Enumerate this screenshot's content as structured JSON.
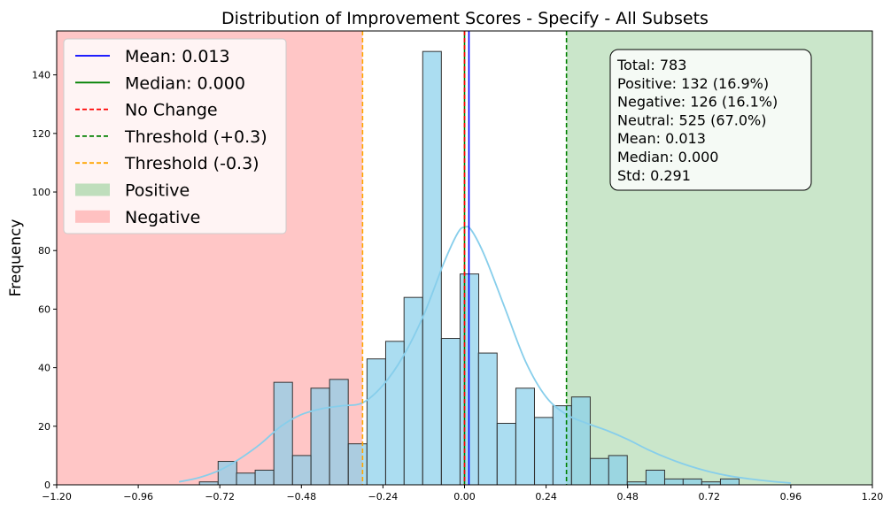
{
  "chart_data": {
    "type": "histogram",
    "title": "Distribution of Improvement Scores - Specify - All Subsets",
    "xlabel": "",
    "ylabel": "Frequency",
    "xlim": [
      -1.2,
      1.2
    ],
    "ylim": [
      0,
      155
    ],
    "xticks": [
      -1.2,
      -0.96,
      -0.72,
      -0.48,
      -0.24,
      0.0,
      0.24,
      0.48,
      0.72,
      0.96,
      1.2
    ],
    "xtick_labels": [
      "−1.20",
      "−0.96",
      "−0.72",
      "−0.48",
      "−0.24",
      "0.00",
      "0.24",
      "0.48",
      "0.72",
      "0.96",
      "1.20"
    ],
    "yticks": [
      0,
      20,
      40,
      60,
      80,
      100,
      120,
      140
    ],
    "ytick_labels": [
      "0",
      "20",
      "40",
      "60",
      "80",
      "100",
      "120",
      "140"
    ],
    "bin_width": 0.0548,
    "bins_start": [
      -0.835,
      -0.78,
      -0.725,
      -0.671,
      -0.616,
      -0.561,
      -0.506,
      -0.452,
      -0.397,
      -0.342,
      -0.287,
      -0.232,
      -0.178,
      -0.123,
      -0.068,
      -0.013,
      0.041,
      0.096,
      0.151,
      0.206,
      0.26,
      0.315,
      0.37,
      0.424,
      0.479,
      0.534,
      0.589,
      0.643,
      0.698,
      0.753,
      0.808,
      0.862,
      0.917
    ],
    "counts": [
      0,
      1,
      8,
      4,
      5,
      35,
      10,
      33,
      36,
      14,
      43,
      49,
      64,
      148,
      50,
      72,
      45,
      21,
      33,
      23,
      27,
      30,
      9,
      10,
      1,
      5,
      2,
      2,
      1,
      2,
      0,
      0,
      0
    ],
    "kde": {
      "x": [
        -0.84,
        -0.78,
        -0.72,
        -0.66,
        -0.6,
        -0.54,
        -0.48,
        -0.42,
        -0.36,
        -0.3,
        -0.24,
        -0.18,
        -0.12,
        -0.06,
        -0.02,
        0.0,
        0.02,
        0.06,
        0.12,
        0.18,
        0.24,
        0.3,
        0.36,
        0.42,
        0.48,
        0.54,
        0.6,
        0.66,
        0.72,
        0.78,
        0.84,
        0.9,
        0.96
      ],
      "y": [
        1,
        2.5,
        5,
        9,
        14,
        20,
        24,
        26,
        27,
        28,
        34,
        44,
        58,
        76,
        86,
        88,
        87,
        78,
        60,
        42,
        30,
        24,
        21,
        18.5,
        15.5,
        12,
        9,
        6.5,
        4.5,
        3,
        2,
        1.2,
        0.6
      ]
    },
    "lines": {
      "mean": 0.013,
      "median": 0.0,
      "no_change": 0.0,
      "threshold_pos": 0.3,
      "threshold_neg": -0.3
    },
    "regions": {
      "negative": [
        -1.2,
        -0.3
      ],
      "positive": [
        0.3,
        1.2
      ]
    },
    "legend": {
      "placement": "upper-left",
      "items": [
        {
          "label": "Mean: 0.013",
          "kind": "line",
          "color": "#0000ff",
          "dash": ""
        },
        {
          "label": "Median: 0.000",
          "kind": "line",
          "color": "#008000",
          "dash": ""
        },
        {
          "label": "No Change",
          "kind": "line",
          "color": "#ff0000",
          "dash": "5,3"
        },
        {
          "label": "Threshold (+0.3)",
          "kind": "line",
          "color": "#008000",
          "dash": "5,3"
        },
        {
          "label": "Threshold (-0.3)",
          "kind": "line",
          "color": "#ffa500",
          "dash": "5,3"
        },
        {
          "label": "Positive",
          "kind": "patch",
          "color": "#a9d7a9"
        },
        {
          "label": "Negative",
          "kind": "patch",
          "color": "#ffb0b0"
        }
      ]
    },
    "stats_box": {
      "placement": "upper-right",
      "lines": [
        "Total: 783",
        "Positive: 132 (16.9%)",
        "Negative: 126 (16.1%)",
        "Neutral: 525 (67.0%)",
        "Mean: 0.013",
        "Median: 0.000",
        "Std: 0.291"
      ]
    },
    "colors": {
      "bar_fill": "#87ceeb",
      "bar_edge": "#333333",
      "kde": "#87ceeb",
      "negative_region": "#ffb3b3",
      "positive_region": "#b3dbb3"
    }
  }
}
